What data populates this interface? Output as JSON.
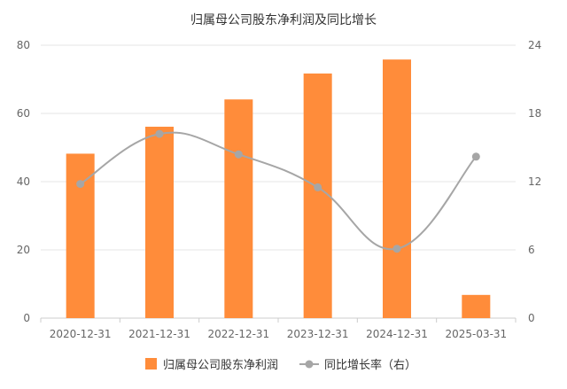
{
  "chart_data": {
    "type": "bar",
    "title": "归属母公司股东净利润及同比增长",
    "categories": [
      "2020-12-31",
      "2021-12-31",
      "2022-12-31",
      "2023-12-31",
      "2024-12-31",
      "2025-03-31"
    ],
    "series": [
      {
        "name": "归属母公司股东净利润",
        "type": "bar",
        "axis": "left",
        "values": [
          48.2,
          56.1,
          64.1,
          71.7,
          75.8,
          6.8
        ]
      },
      {
        "name": "同比增长率（右）",
        "type": "line",
        "axis": "right",
        "values": [
          11.8,
          16.2,
          14.4,
          11.5,
          6.1,
          14.2
        ]
      }
    ],
    "y_left": {
      "min": 0,
      "max": 80,
      "ticks": [
        0,
        20,
        40,
        60,
        80
      ]
    },
    "y_right": {
      "min": 0,
      "max": 24,
      "ticks": [
        0,
        6,
        12,
        18,
        24
      ]
    },
    "grid": true,
    "legend_position": "bottom",
    "colors": {
      "bar": "#FF8C3A",
      "line": "#A6A6A6",
      "grid": "#E6E6E6",
      "axis_text": "#666666"
    }
  }
}
